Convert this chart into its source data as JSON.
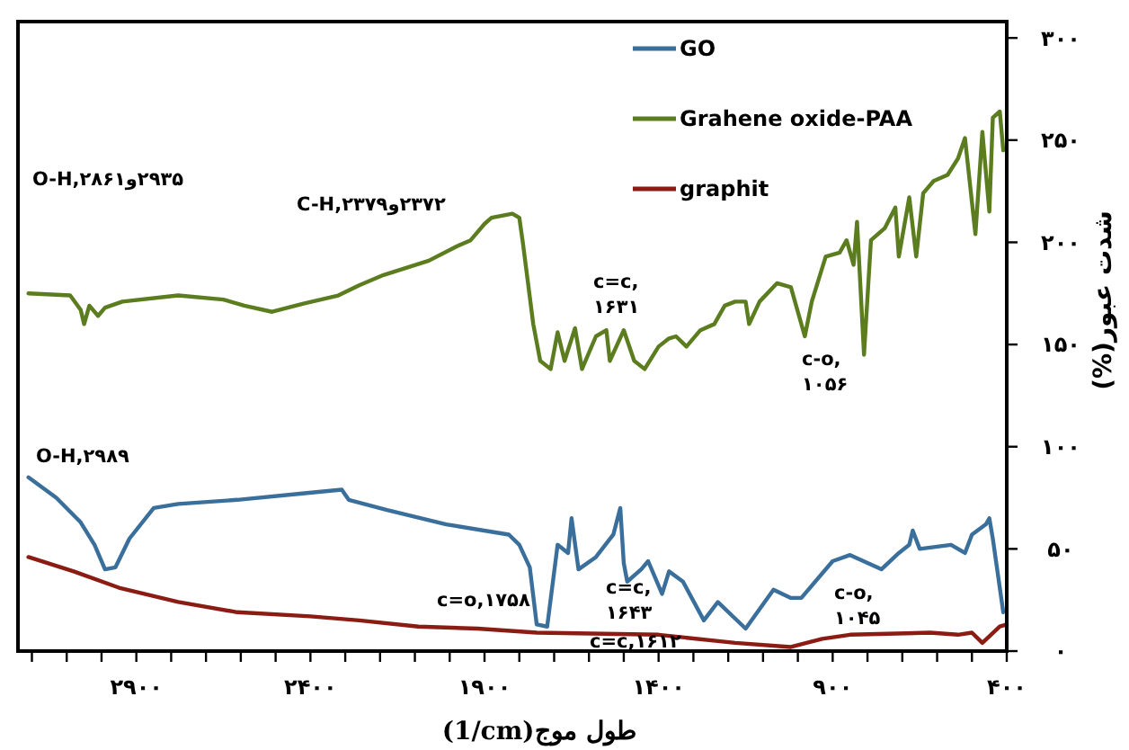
{
  "chart_data": {
    "type": "line",
    "xlabel": "طول موج(1/cm)",
    "ylabel": "شدت عبور(%)",
    "xlim": [
      3240,
      400
    ],
    "ylim": [
      0,
      308
    ],
    "xticks": [
      {
        "value": 3200,
        "label": null
      },
      {
        "value": 3100,
        "label": null
      },
      {
        "value": 3000,
        "label": null
      },
      {
        "value": 2900,
        "label": "۲۹۰۰"
      },
      {
        "value": 2800,
        "label": null
      },
      {
        "value": 2700,
        "label": null
      },
      {
        "value": 2600,
        "label": null
      },
      {
        "value": 2500,
        "label": null
      },
      {
        "value": 2400,
        "label": "۲۴۰۰"
      },
      {
        "value": 2300,
        "label": null
      },
      {
        "value": 2200,
        "label": null
      },
      {
        "value": 2100,
        "label": null
      },
      {
        "value": 2000,
        "label": null
      },
      {
        "value": 1900,
        "label": "۱۹۰۰"
      },
      {
        "value": 1800,
        "label": null
      },
      {
        "value": 1700,
        "label": null
      },
      {
        "value": 1600,
        "label": null
      },
      {
        "value": 1500,
        "label": null
      },
      {
        "value": 1400,
        "label": "۱۴۰۰"
      },
      {
        "value": 1300,
        "label": null
      },
      {
        "value": 1200,
        "label": null
      },
      {
        "value": 1100,
        "label": null
      },
      {
        "value": 1000,
        "label": null
      },
      {
        "value": 900,
        "label": "۹۰۰"
      },
      {
        "value": 800,
        "label": null
      },
      {
        "value": 700,
        "label": null
      },
      {
        "value": 600,
        "label": null
      },
      {
        "value": 500,
        "label": null
      },
      {
        "value": 400,
        "label": "۴۰۰"
      }
    ],
    "yticks": [
      {
        "value": 0,
        "label": "۰"
      },
      {
        "value": 50,
        "label": "۵۰"
      },
      {
        "value": 100,
        "label": "۱۰۰"
      },
      {
        "value": 150,
        "label": "۱۵۰"
      },
      {
        "value": 200,
        "label": "۲۰۰"
      },
      {
        "value": 250,
        "label": "۲۵۰"
      },
      {
        "value": 300,
        "label": "۳۰۰"
      }
    ],
    "grid": false,
    "legend": "top",
    "marker": "none",
    "line_style": "solid",
    "series": [
      {
        "name": "GO",
        "color": "#3a6f9c",
        "x": [
          3210,
          3130,
          3060,
          3020,
          2990,
          2960,
          2920,
          2850,
          2780,
          2610,
          2430,
          2310,
          2290,
          2180,
          2010,
          1830,
          1800,
          1770,
          1750,
          1720,
          1690,
          1660,
          1650,
          1630,
          1580,
          1530,
          1510,
          1500,
          1490,
          1450,
          1430,
          1390,
          1370,
          1330,
          1270,
          1230,
          1150,
          1070,
          1020,
          990,
          900,
          850,
          760,
          710,
          680,
          670,
          650,
          560,
          520,
          500,
          460,
          450,
          440,
          410
        ],
        "values": [
          85,
          75,
          63,
          52,
          40,
          41,
          55,
          70,
          72,
          74,
          77,
          79,
          74,
          69,
          62,
          57,
          52,
          41,
          13,
          12,
          52,
          48,
          65,
          40,
          46,
          57,
          70,
          43,
          34,
          40,
          44,
          28,
          39,
          34,
          15,
          24,
          11,
          30,
          26,
          26,
          44,
          47,
          40,
          48,
          52,
          59,
          50,
          52,
          48,
          57,
          62,
          65,
          55,
          19
        ]
      },
      {
        "name": "Grahene oxide-PAA",
        "color": "#5b7d1f",
        "x": [
          3210,
          3090,
          3060,
          3050,
          3035,
          3010,
          2990,
          2940,
          2780,
          2650,
          2590,
          2510,
          2420,
          2320,
          2260,
          2190,
          2060,
          1980,
          1940,
          1900,
          1880,
          1820,
          1800,
          1790,
          1760,
          1740,
          1710,
          1690,
          1670,
          1640,
          1620,
          1580,
          1550,
          1540,
          1500,
          1470,
          1440,
          1400,
          1370,
          1350,
          1320,
          1280,
          1240,
          1210,
          1180,
          1150,
          1140,
          1110,
          1060,
          1020,
          980,
          960,
          920,
          880,
          860,
          840,
          830,
          810,
          790,
          750,
          720,
          710,
          680,
          660,
          640,
          610,
          570,
          540,
          520,
          490,
          470,
          450,
          440,
          420,
          410
        ],
        "values": [
          175,
          174,
          167,
          160,
          169,
          164,
          168,
          171,
          174,
          172,
          169,
          166,
          170,
          174,
          179,
          184,
          191,
          198,
          201,
          209,
          212,
          214,
          212,
          200,
          160,
          142,
          138,
          156,
          142,
          158,
          138,
          154,
          157,
          142,
          157,
          142,
          138,
          149,
          153,
          154,
          149,
          157,
          160,
          169,
          171,
          171,
          160,
          171,
          180,
          178,
          154,
          171,
          193,
          195,
          201,
          189,
          210,
          145,
          201,
          207,
          217,
          193,
          222,
          193,
          224,
          230,
          233,
          241,
          251,
          204,
          254,
          215,
          261,
          264,
          245
        ]
      },
      {
        "name": "graphit",
        "color": "#8b1c14",
        "x": [
          3210,
          3080,
          2950,
          2780,
          2610,
          2400,
          2260,
          2090,
          1920,
          1750,
          1400,
          1180,
          1020,
          930,
          850,
          620,
          540,
          500,
          470,
          420,
          400
        ],
        "values": [
          46,
          39,
          31,
          24,
          19,
          17,
          15,
          12,
          11,
          9,
          8,
          4,
          2,
          6,
          8,
          9,
          8,
          9,
          4,
          12,
          13
        ]
      }
    ],
    "annotations": [
      "O-H,۲۸۶۱و۲۹۳۵",
      "C-H,۲۳۷۹و۲۳۷۲",
      "c=c,\n۱۶۳۱",
      "c-o,\n۱۰۵۶",
      "O-H,۲۹۸۹",
      "c=o,۱۷۵۸",
      "c=c,\n۱۶۴۳",
      "c=c,۱۶۱۲",
      "c-o,\n۱۰۴۵"
    ]
  }
}
